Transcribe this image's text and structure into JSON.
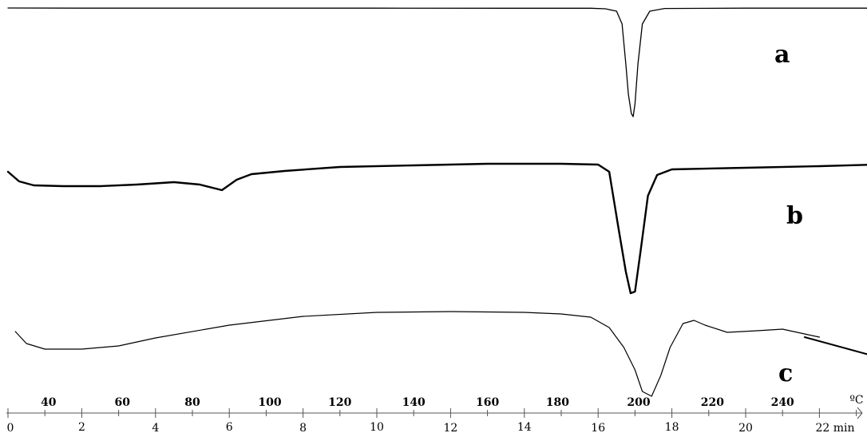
{
  "chart_data": {
    "type": "line",
    "x_unit": "min",
    "x_range": [
      0,
      23.5
    ],
    "temperature_unit": "ºC",
    "time_axis_label": "22 min",
    "time_ticks": [
      0,
      2,
      4,
      6,
      8,
      10,
      12,
      14,
      16,
      18,
      20
    ],
    "time_tick_labels": [
      "0",
      "2",
      "4",
      "6",
      "8",
      "10",
      "12",
      "14",
      "16",
      "18",
      "20"
    ],
    "temperature_ticks": [
      {
        "label": "40",
        "time": 1.1
      },
      {
        "label": "60",
        "time": 3.1
      },
      {
        "label": "80",
        "time": 5.0
      },
      {
        "label": "100",
        "time": 7.1
      },
      {
        "label": "120",
        "time": 9.0
      },
      {
        "label": "140",
        "time": 11.0
      },
      {
        "label": "160",
        "time": 13.0
      },
      {
        "label": "180",
        "time": 14.9
      },
      {
        "label": "200",
        "time": 17.1
      },
      {
        "label": "220",
        "time": 19.1
      },
      {
        "label": "240",
        "time": 21.0
      }
    ],
    "grid": false,
    "series": [
      {
        "label": "a",
        "baseline_offset": 0,
        "points": [
          [
            0.0,
            0.0
          ],
          [
            2,
            0.2
          ],
          [
            6,
            0.2
          ],
          [
            10,
            0.2
          ],
          [
            14,
            0.3
          ],
          [
            15.8,
            0.3
          ],
          [
            16.2,
            1
          ],
          [
            16.5,
            4
          ],
          [
            16.65,
            20
          ],
          [
            16.75,
            70
          ],
          [
            16.82,
            108
          ],
          [
            16.9,
            132
          ],
          [
            16.95,
            136
          ],
          [
            17.0,
            120
          ],
          [
            17.08,
            70
          ],
          [
            17.2,
            20
          ],
          [
            17.4,
            4
          ],
          [
            17.8,
            0.6
          ],
          [
            20,
            0.2
          ],
          [
            23.5,
            0.2
          ]
        ]
      },
      {
        "label": "b",
        "baseline_offset": 205,
        "points": [
          [
            0,
            0
          ],
          [
            0.3,
            12
          ],
          [
            0.7,
            17
          ],
          [
            1.5,
            18
          ],
          [
            2.5,
            18
          ],
          [
            3.5,
            16
          ],
          [
            4.5,
            13
          ],
          [
            5.2,
            16
          ],
          [
            5.8,
            23
          ],
          [
            6.2,
            10
          ],
          [
            6.6,
            3
          ],
          [
            7.5,
            -1
          ],
          [
            9,
            -6
          ],
          [
            11,
            -8
          ],
          [
            13,
            -10
          ],
          [
            15,
            -10
          ],
          [
            16.0,
            -9
          ],
          [
            16.3,
            0
          ],
          [
            16.55,
            70
          ],
          [
            16.75,
            125
          ],
          [
            16.88,
            152
          ],
          [
            17.0,
            150
          ],
          [
            17.15,
            100
          ],
          [
            17.35,
            30
          ],
          [
            17.6,
            4
          ],
          [
            18,
            -3
          ],
          [
            20,
            -5
          ],
          [
            22,
            -7
          ],
          [
            23.5,
            -9
          ]
        ]
      },
      {
        "label": "c",
        "baseline_offset": 405,
        "points": [
          [
            0.2,
            0
          ],
          [
            0.5,
            15
          ],
          [
            1.0,
            22
          ],
          [
            2,
            22
          ],
          [
            3,
            18
          ],
          [
            4,
            8
          ],
          [
            6,
            -8
          ],
          [
            8,
            -19
          ],
          [
            10,
            -24
          ],
          [
            12,
            -25
          ],
          [
            14,
            -24
          ],
          [
            15,
            -22
          ],
          [
            15.8,
            -18
          ],
          [
            16.3,
            -5
          ],
          [
            16.7,
            20
          ],
          [
            17.0,
            48
          ],
          [
            17.2,
            75
          ],
          [
            17.45,
            81
          ],
          [
            17.7,
            55
          ],
          [
            17.95,
            20
          ],
          [
            18.3,
            -10
          ],
          [
            18.6,
            -14
          ],
          [
            18.9,
            -8
          ],
          [
            19.5,
            1
          ],
          [
            20.3,
            -1
          ],
          [
            21.0,
            -3
          ],
          [
            21.6,
            3
          ],
          [
            22.0,
            7
          ]
        ]
      },
      {
        "label": "c",
        "role": "tail",
        "baseline_offset": 405,
        "points": [
          [
            21.6,
            7
          ],
          [
            23.5,
            31
          ]
        ]
      }
    ]
  }
}
